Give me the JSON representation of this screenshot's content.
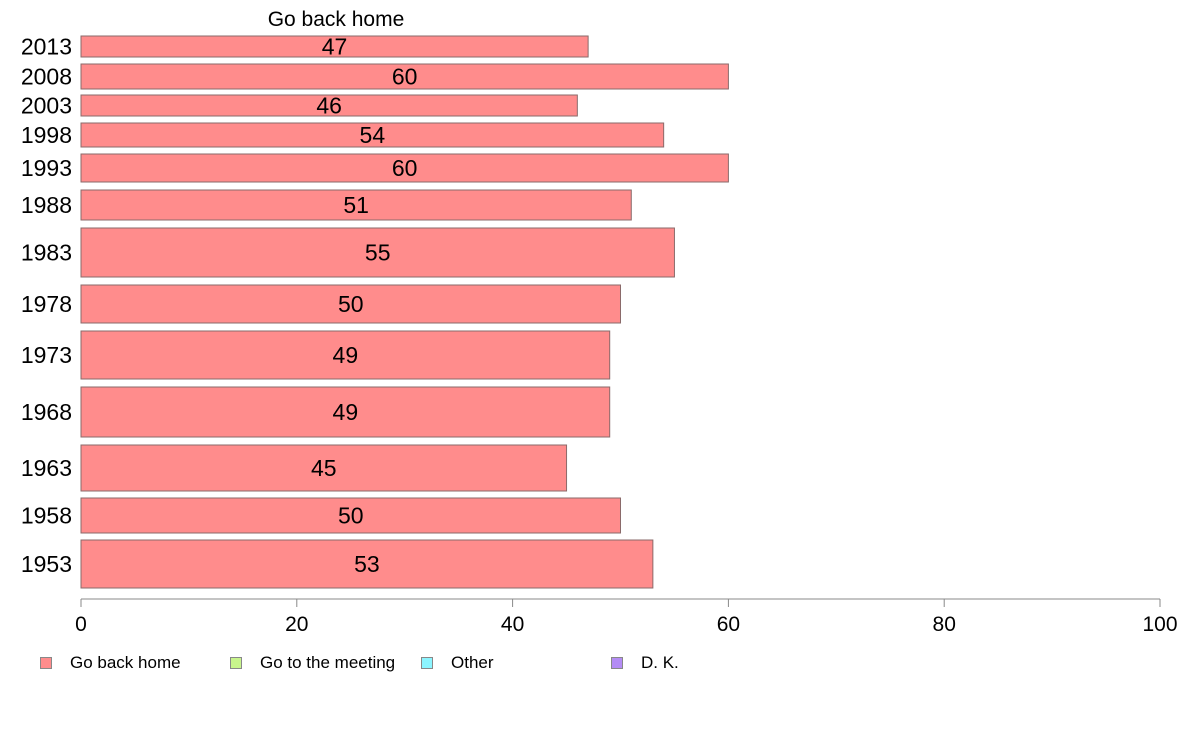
{
  "chart_data": {
    "type": "bar",
    "orientation": "horizontal",
    "title": "Go back home",
    "categories": [
      "2013",
      "2008",
      "2003",
      "1998",
      "1993",
      "1988",
      "1983",
      "1978",
      "1973",
      "1968",
      "1963",
      "1958",
      "1953"
    ],
    "series": [
      {
        "name": "Go back home",
        "color": "#ff8c8c",
        "values": [
          47,
          60,
          46,
          54,
          60,
          51,
          55,
          50,
          49,
          49,
          45,
          50,
          53
        ]
      }
    ],
    "data_labels": [
      "47",
      "60",
      "46",
      "54",
      "60",
      "51",
      "55",
      "50",
      "49",
      "49",
      "45",
      "50",
      "53"
    ],
    "xlim": [
      0,
      100
    ],
    "xticks": [
      "0",
      "20",
      "40",
      "60",
      "80",
      "100"
    ],
    "legend_position": "bottom",
    "legend": [
      {
        "label": "Go back home",
        "color": "#ff8c8c"
      },
      {
        "label": "Go to the meeting",
        "color": "#c8f58c"
      },
      {
        "label": "Other",
        "color": "#8cf5ff"
      },
      {
        "label": "D. K.",
        "color": "#b48cf5"
      }
    ]
  }
}
